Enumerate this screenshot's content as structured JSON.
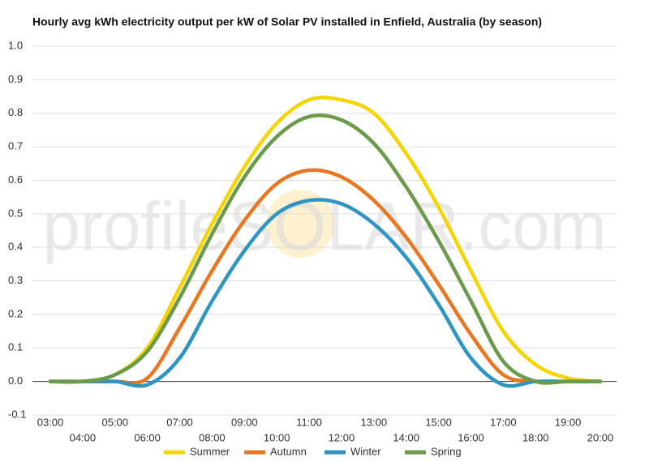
{
  "chart_data": {
    "type": "line",
    "title": "Hourly avg kWh electricity output per kW of Solar PV installed in Enfield, Australia (by season)",
    "watermark": "profileSOLAR.com",
    "categories": [
      "03:00",
      "04:00",
      "05:00",
      "06:00",
      "07:00",
      "08:00",
      "09:00",
      "10:00",
      "11:00",
      "12:00",
      "13:00",
      "14:00",
      "15:00",
      "16:00",
      "17:00",
      "18:00",
      "19:00",
      "20:00"
    ],
    "series": [
      {
        "name": "Summer",
        "color": "#f5d400",
        "values": [
          0,
          0,
          0.02,
          0.1,
          0.28,
          0.47,
          0.64,
          0.77,
          0.84,
          0.84,
          0.8,
          0.68,
          0.52,
          0.33,
          0.15,
          0.05,
          0.01,
          0
        ]
      },
      {
        "name": "Autumn",
        "color": "#e87722",
        "values": [
          0,
          0,
          0,
          0.01,
          0.16,
          0.33,
          0.48,
          0.59,
          0.63,
          0.61,
          0.54,
          0.43,
          0.29,
          0.14,
          0.02,
          0,
          0,
          0
        ]
      },
      {
        "name": "Winter",
        "color": "#2e95c3",
        "values": [
          0,
          0,
          0,
          -0.01,
          0.07,
          0.24,
          0.39,
          0.5,
          0.54,
          0.53,
          0.47,
          0.37,
          0.23,
          0.07,
          -0.01,
          0,
          0,
          0
        ]
      },
      {
        "name": "Spring",
        "color": "#6b9a4a",
        "values": [
          0,
          0,
          0.02,
          0.09,
          0.25,
          0.44,
          0.61,
          0.73,
          0.79,
          0.78,
          0.71,
          0.58,
          0.42,
          0.24,
          0.06,
          0,
          0,
          0
        ]
      }
    ],
    "ylim": [
      -0.1,
      1.0
    ],
    "yticks": [
      -0.1,
      {
        "value": 0,
        "label": "0.0"
      },
      0.1,
      0.2,
      0.3,
      0.4,
      0.5,
      0.6,
      0.7,
      0.8,
      0.9,
      {
        "value": 1,
        "label": "1.0"
      }
    ],
    "grid": true,
    "legend": "bottom"
  }
}
